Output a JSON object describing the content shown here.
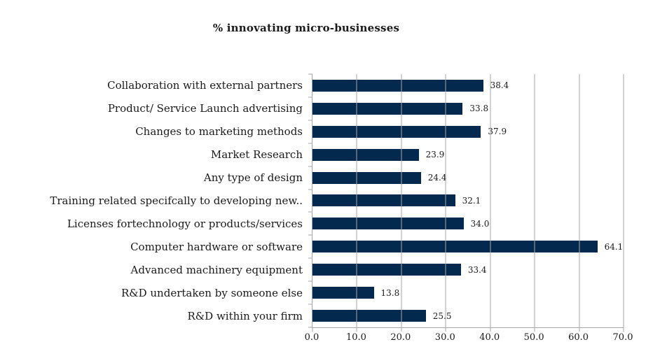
{
  "title": "% innovating micro-businesses",
  "chart_data": {
    "type": "bar",
    "orientation": "horizontal",
    "title": "% innovating micro-businesses",
    "categories": [
      "Collaboration with external partners",
      "Product/ Service Launch advertising",
      "Changes to marketing methods",
      "Market Research",
      "Any type of design",
      "Training related specifcally to developing new..",
      "Licenses fortechnology or products/services",
      "Computer hardware or software",
      "Advanced machinery equipment",
      "R&D undertaken by someone else",
      "R&D within your firm"
    ],
    "values": [
      38.4,
      33.8,
      37.9,
      23.9,
      24.4,
      32.1,
      34.0,
      64.1,
      33.4,
      13.8,
      25.5
    ],
    "value_labels": [
      "38.4",
      "33.8",
      "37.9",
      "23.9",
      "24.4",
      "32.1",
      "34.0",
      "64.1",
      "33.4",
      "13.8",
      "25.5"
    ],
    "xlim": [
      0,
      70
    ],
    "xtick_labels": [
      "0.0",
      "10.0",
      "20.0",
      "30.0",
      "40.0",
      "50.0",
      "60.0",
      "70.0"
    ],
    "grid": true,
    "legend": false,
    "colors": {
      "bar": "#03294e",
      "gridline": "#a6a6a6",
      "axis": "#a6a6a6",
      "text": "#1a1a1a"
    }
  }
}
